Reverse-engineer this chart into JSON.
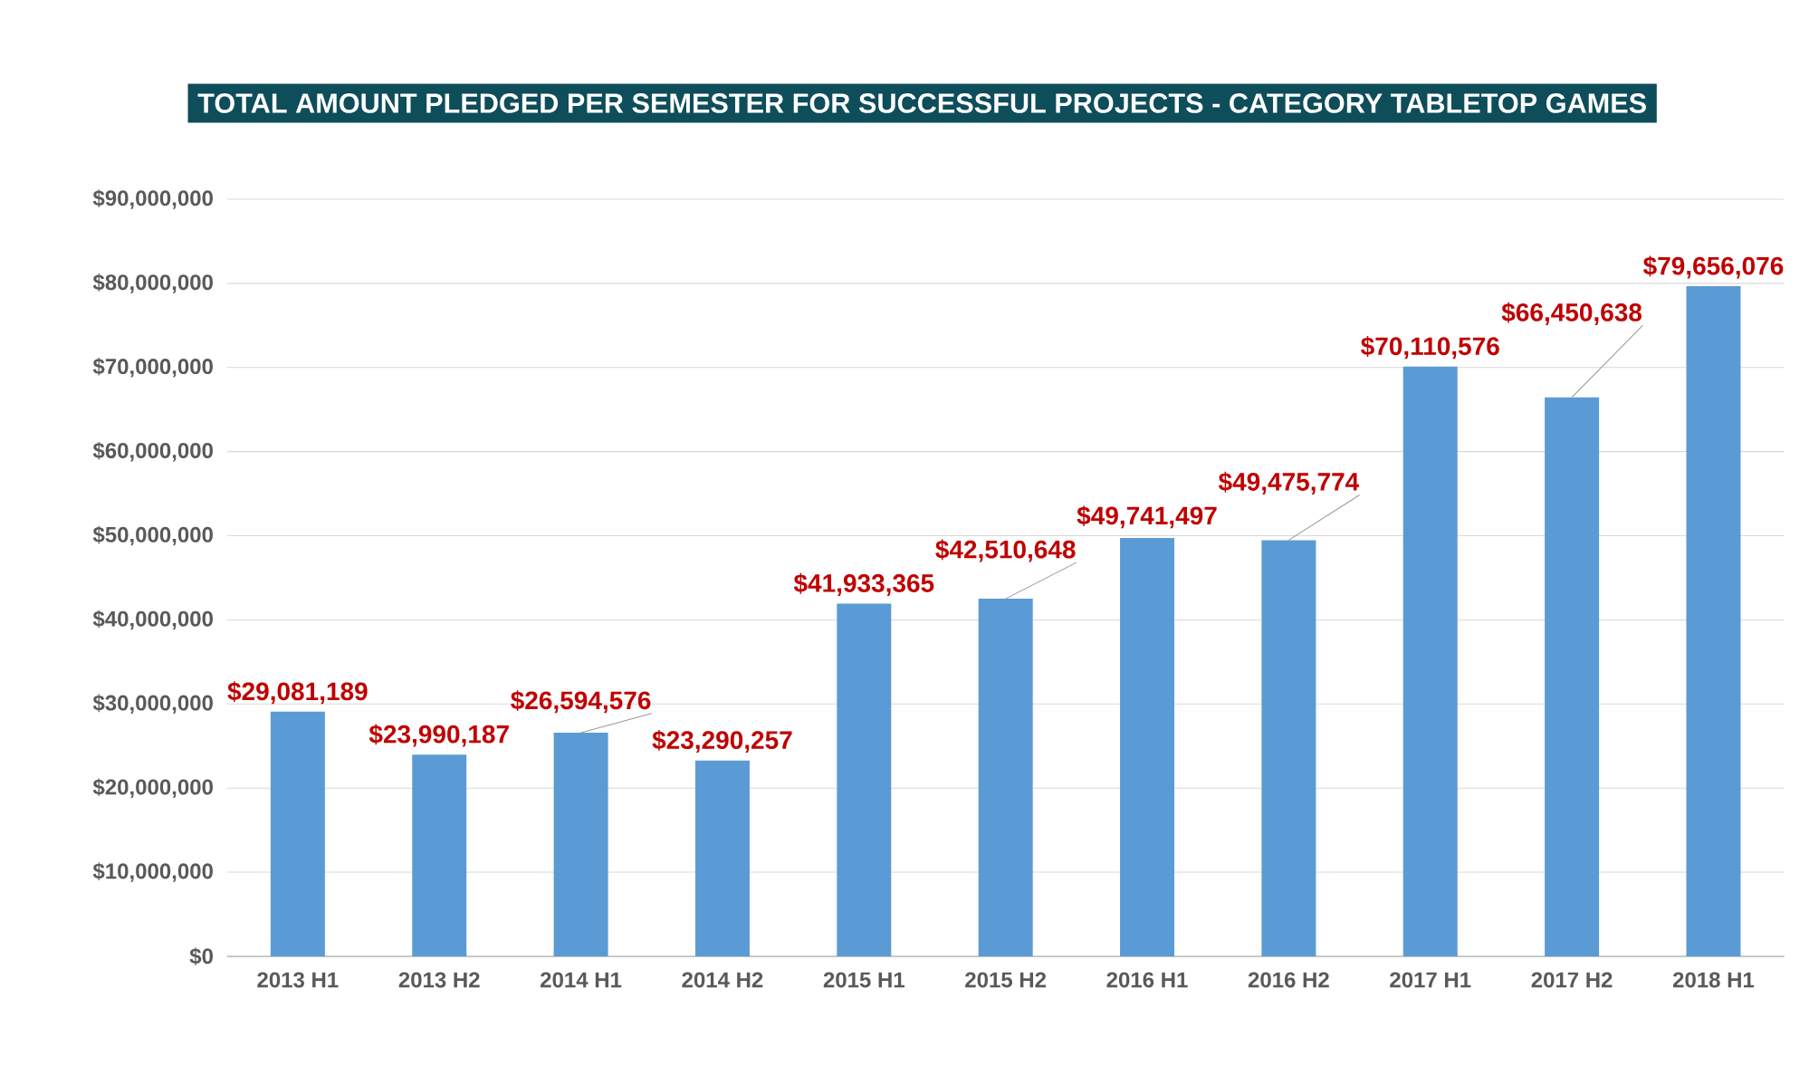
{
  "chart_data": {
    "type": "bar",
    "title": "TOTAL AMOUNT PLEDGED PER SEMESTER FOR SUCCESSFUL PROJECTS - CATEGORY TABLETOP GAMES",
    "categories": [
      "2013 H1",
      "2013 H2",
      "2014 H1",
      "2014 H2",
      "2015 H1",
      "2015 H2",
      "2016 H1",
      "2016 H2",
      "2017 H1",
      "2017 H2",
      "2018 H1"
    ],
    "values": [
      29081189,
      23990187,
      26594576,
      23290257,
      41933365,
      42510648,
      49741497,
      49475774,
      70110576,
      66450638,
      79656076
    ],
    "value_labels": [
      "$29,081,189",
      "$23,990,187",
      "$26,594,576",
      "$23,290,257",
      "$41,933,365",
      "$42,510,648",
      "$49,741,497",
      "$49,475,774",
      "$70,110,576",
      "$66,450,638",
      "$79,656,076"
    ],
    "color": "#5b9bd5",
    "ylim": [
      0,
      90000000
    ],
    "yticks": [
      {
        "value": 0,
        "label": "$0"
      },
      {
        "value": 10000000,
        "label": "$10,000,000"
      },
      {
        "value": 20000000,
        "label": "$20,000,000"
      },
      {
        "value": 30000000,
        "label": "$30,000,000"
      },
      {
        "value": 40000000,
        "label": "$40,000,000"
      },
      {
        "value": 50000000,
        "label": "$50,000,000"
      },
      {
        "value": 60000000,
        "label": "$60,000,000"
      },
      {
        "value": 70000000,
        "label": "$70,000,000"
      },
      {
        "value": 80000000,
        "label": "$80,000,000"
      },
      {
        "value": 90000000,
        "label": "$90,000,000"
      }
    ],
    "grid": "y"
  }
}
